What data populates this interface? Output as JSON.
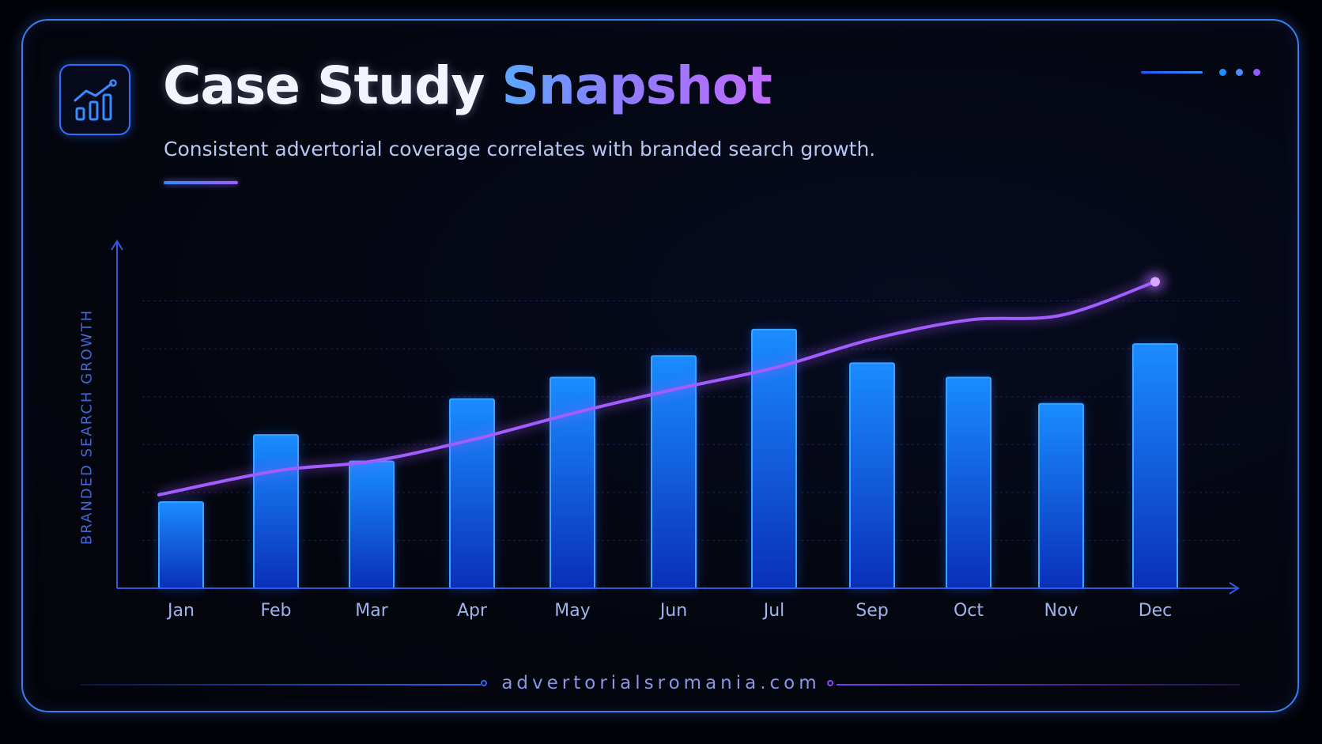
{
  "header": {
    "title_part1": "Case Study",
    "title_part2": "Snapshot",
    "subtitle": "Consistent advertorial coverage correlates with branded search growth."
  },
  "icons": {
    "logo": "bar-chart-trend-icon",
    "menu": "three-dots-icon"
  },
  "footer": {
    "text": "advertorialsromania.com"
  },
  "colors": {
    "bar_top": "#1a8cff",
    "bar_bottom": "#0a2fb8",
    "bar_edge": "#39a3ff",
    "line": "#a25cff",
    "axis": "#2f5ae0",
    "dot_blue": "#1f8fff",
    "dot_violet": "#9b5cff"
  },
  "chart_data": {
    "type": "bar",
    "title": "",
    "xlabel": "",
    "ylabel": "BRANDED SEARCH GROWTH",
    "categories": [
      "Jan",
      "Feb",
      "Mar",
      "Apr",
      "May",
      "Jun",
      "Jul",
      "Sep",
      "Oct",
      "Nov",
      "Dec"
    ],
    "ylim": [
      0,
      7
    ],
    "grid": true,
    "series": [
      {
        "type": "bar",
        "values": [
          1.8,
          3.2,
          2.65,
          3.95,
          4.4,
          4.85,
          5.4,
          4.7,
          4.4,
          3.85,
          5.1
        ]
      },
      {
        "type": "line",
        "values": [
          1.95,
          2.45,
          2.65,
          3.1,
          3.65,
          4.15,
          4.6,
          5.2,
          5.6,
          5.7,
          6.4
        ]
      }
    ]
  }
}
